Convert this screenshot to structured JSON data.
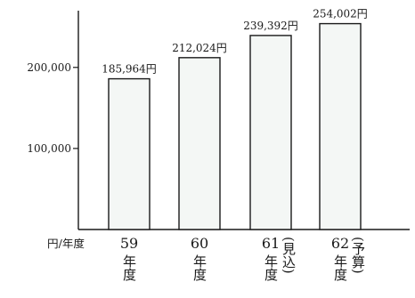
{
  "chart_data": {
    "type": "bar",
    "title": "",
    "xlabel": "",
    "ylabel": "",
    "axis_unit_label": "円/年度",
    "ylim": [
      0,
      270000
    ],
    "y_ticks": [
      {
        "value": 100000,
        "label": "100,000"
      },
      {
        "value": 200000,
        "label": "200,000"
      }
    ],
    "categories": [
      {
        "year": "59",
        "suffix": "年度",
        "note": ""
      },
      {
        "year": "60",
        "suffix": "年度",
        "note": ""
      },
      {
        "year": "61",
        "suffix": "年度",
        "note": "(見込)"
      },
      {
        "year": "62",
        "suffix": "年度",
        "note": "(予算)"
      }
    ],
    "values": [
      185964,
      212024,
      239392,
      254002
    ],
    "data_labels": [
      "185,964円",
      "212,024円",
      "239,392円",
      "254,002円"
    ],
    "colors": {
      "bar_fill": "#f4f7f5",
      "stroke": "#1a1a1a",
      "background": "#ffffff"
    }
  }
}
